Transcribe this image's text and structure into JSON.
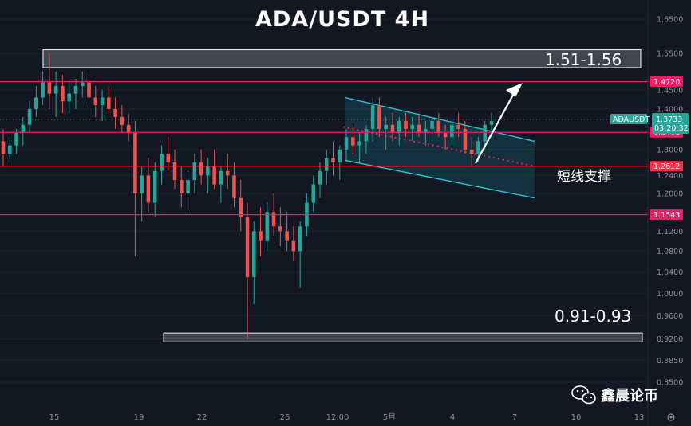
{
  "header": {
    "title": "ADA/USDT  4H"
  },
  "chart_data": {
    "type": "candlestick",
    "title": "ADA/USDT  4H",
    "symbol": "ADAUSDT",
    "timeframe": "4H",
    "ylim": [
      0.82,
      1.68
    ],
    "y_scale": "log",
    "y_ticks": [
      "1.6500",
      "1.5500",
      "1.4500",
      "1.4000",
      "1.3000",
      "1.2400",
      "1.2000",
      "1.1200",
      "1.0800",
      "1.0400",
      "1.0000",
      "0.9600",
      "0.9200",
      "0.8850",
      "0.8500"
    ],
    "x_ticks": [
      "15",
      "19",
      "22",
      "26",
      "12:00",
      "5月",
      "4",
      "7",
      "10",
      "13"
    ],
    "current_price": {
      "label": "ADAUSDT",
      "value": "1.3733",
      "countdown": "03:20:32"
    },
    "levels": [
      {
        "value": 1.472,
        "label": "1.4720"
      },
      {
        "value": 1.3416,
        "label": "1.3416"
      },
      {
        "value": 1.2612,
        "label": "1.2612"
      },
      {
        "value": 1.1543,
        "label": "1.1543"
      }
    ],
    "zones": [
      {
        "low": 1.51,
        "high": 1.56,
        "label": "1.51-1.56"
      },
      {
        "low": 0.915,
        "high": 0.93,
        "label": "0.91-0.93"
      }
    ],
    "annotations": {
      "support_text": "短线支撑"
    },
    "ohlc": [
      [
        1.32,
        1.35,
        1.26,
        1.29
      ],
      [
        1.29,
        1.33,
        1.27,
        1.31
      ],
      [
        1.31,
        1.35,
        1.29,
        1.34
      ],
      [
        1.34,
        1.38,
        1.31,
        1.36
      ],
      [
        1.36,
        1.42,
        1.34,
        1.4
      ],
      [
        1.4,
        1.46,
        1.38,
        1.43
      ],
      [
        1.43,
        1.5,
        1.41,
        1.47
      ],
      [
        1.47,
        1.55,
        1.4,
        1.44
      ],
      [
        1.44,
        1.5,
        1.38,
        1.46
      ],
      [
        1.46,
        1.49,
        1.39,
        1.42
      ],
      [
        1.42,
        1.47,
        1.39,
        1.44
      ],
      [
        1.44,
        1.48,
        1.4,
        1.46
      ],
      [
        1.46,
        1.5,
        1.43,
        1.47
      ],
      [
        1.47,
        1.49,
        1.41,
        1.43
      ],
      [
        1.43,
        1.46,
        1.38,
        1.41
      ],
      [
        1.41,
        1.45,
        1.37,
        1.43
      ],
      [
        1.43,
        1.46,
        1.39,
        1.4
      ],
      [
        1.4,
        1.43,
        1.35,
        1.38
      ],
      [
        1.38,
        1.41,
        1.34,
        1.36
      ],
      [
        1.36,
        1.39,
        1.32,
        1.34
      ],
      [
        1.34,
        1.37,
        1.07,
        1.2
      ],
      [
        1.2,
        1.26,
        1.14,
        1.24
      ],
      [
        1.24,
        1.28,
        1.16,
        1.18
      ],
      [
        1.18,
        1.27,
        1.15,
        1.25
      ],
      [
        1.25,
        1.31,
        1.22,
        1.29
      ],
      [
        1.29,
        1.33,
        1.25,
        1.27
      ],
      [
        1.27,
        1.3,
        1.21,
        1.23
      ],
      [
        1.23,
        1.26,
        1.17,
        1.2
      ],
      [
        1.2,
        1.25,
        1.16,
        1.23
      ],
      [
        1.23,
        1.29,
        1.2,
        1.27
      ],
      [
        1.27,
        1.3,
        1.22,
        1.24
      ],
      [
        1.24,
        1.28,
        1.2,
        1.26
      ],
      [
        1.26,
        1.3,
        1.21,
        1.22
      ],
      [
        1.22,
        1.26,
        1.18,
        1.25
      ],
      [
        1.25,
        1.29,
        1.21,
        1.24
      ],
      [
        1.24,
        1.27,
        1.17,
        1.19
      ],
      [
        1.19,
        1.23,
        1.12,
        1.15
      ],
      [
        1.15,
        1.18,
        0.92,
        1.03
      ],
      [
        1.03,
        1.14,
        0.98,
        1.12
      ],
      [
        1.12,
        1.17,
        1.07,
        1.1
      ],
      [
        1.1,
        1.18,
        1.08,
        1.16
      ],
      [
        1.16,
        1.2,
        1.11,
        1.13
      ],
      [
        1.13,
        1.17,
        1.09,
        1.12
      ],
      [
        1.12,
        1.16,
        1.08,
        1.1
      ],
      [
        1.1,
        1.13,
        1.06,
        1.08
      ],
      [
        1.08,
        1.14,
        1.01,
        1.13
      ],
      [
        1.13,
        1.2,
        1.11,
        1.18
      ],
      [
        1.18,
        1.24,
        1.16,
        1.22
      ],
      [
        1.22,
        1.27,
        1.19,
        1.25
      ],
      [
        1.25,
        1.3,
        1.22,
        1.28
      ],
      [
        1.28,
        1.32,
        1.24,
        1.27
      ],
      [
        1.27,
        1.31,
        1.23,
        1.3
      ],
      [
        1.3,
        1.35,
        1.27,
        1.33
      ],
      [
        1.33,
        1.36,
        1.29,
        1.31
      ],
      [
        1.31,
        1.34,
        1.27,
        1.32
      ],
      [
        1.32,
        1.36,
        1.29,
        1.35
      ],
      [
        1.35,
        1.43,
        1.32,
        1.41
      ],
      [
        1.41,
        1.43,
        1.33,
        1.35
      ],
      [
        1.35,
        1.38,
        1.3,
        1.36
      ],
      [
        1.36,
        1.39,
        1.32,
        1.34
      ],
      [
        1.34,
        1.38,
        1.31,
        1.37
      ],
      [
        1.37,
        1.39,
        1.33,
        1.35
      ],
      [
        1.35,
        1.38,
        1.32,
        1.36
      ],
      [
        1.36,
        1.39,
        1.33,
        1.34
      ],
      [
        1.34,
        1.37,
        1.31,
        1.35
      ],
      [
        1.35,
        1.38,
        1.32,
        1.37
      ],
      [
        1.37,
        1.39,
        1.33,
        1.34
      ],
      [
        1.34,
        1.36,
        1.3,
        1.33
      ],
      [
        1.33,
        1.37,
        1.31,
        1.36
      ],
      [
        1.36,
        1.39,
        1.33,
        1.35
      ],
      [
        1.35,
        1.37,
        1.29,
        1.3
      ],
      [
        1.3,
        1.33,
        1.26,
        1.29
      ],
      [
        1.29,
        1.33,
        1.27,
        1.32
      ],
      [
        1.32,
        1.37,
        1.3,
        1.36
      ],
      [
        1.36,
        1.39,
        1.33,
        1.37
      ]
    ]
  },
  "watermark": {
    "name": "鑫晨论币"
  }
}
